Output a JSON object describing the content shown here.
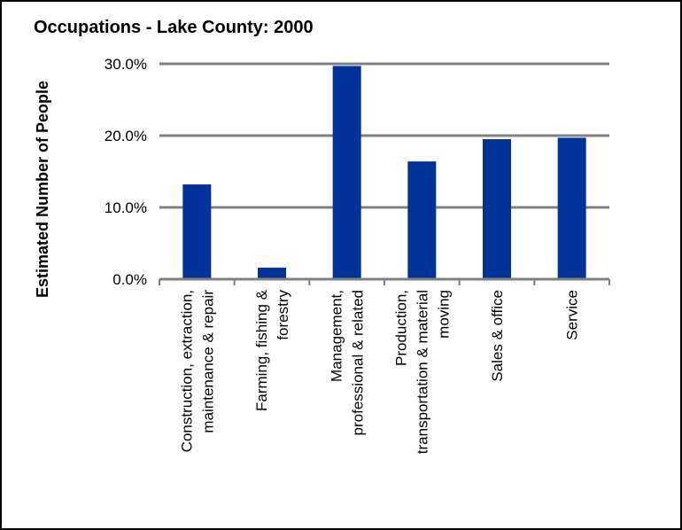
{
  "chart_data": {
    "type": "bar",
    "title": "Occupations - Lake County: 2000",
    "xlabel": "",
    "ylabel": "Estimated Number of People",
    "ylim": [
      0,
      30
    ],
    "yticks": [
      0,
      10,
      20,
      30
    ],
    "ytick_labels": [
      "0.0%",
      "10.0%",
      "20.0%",
      "30.0%"
    ],
    "categories": [
      [
        "Construction, extraction,",
        "maintenance & repair"
      ],
      [
        "Farming, fishing &",
        "forestry"
      ],
      [
        "Management,",
        "professional & related"
      ],
      [
        "Production,",
        "transportation & material",
        "moving"
      ],
      [
        "Sales & office"
      ],
      [
        "Service"
      ]
    ],
    "values": [
      13.2,
      1.6,
      29.7,
      16.4,
      19.5,
      19.7
    ],
    "grid": true,
    "legend": "none",
    "colors": {
      "bar": "#003399",
      "grid": "#808080",
      "frame": "#000000"
    }
  }
}
